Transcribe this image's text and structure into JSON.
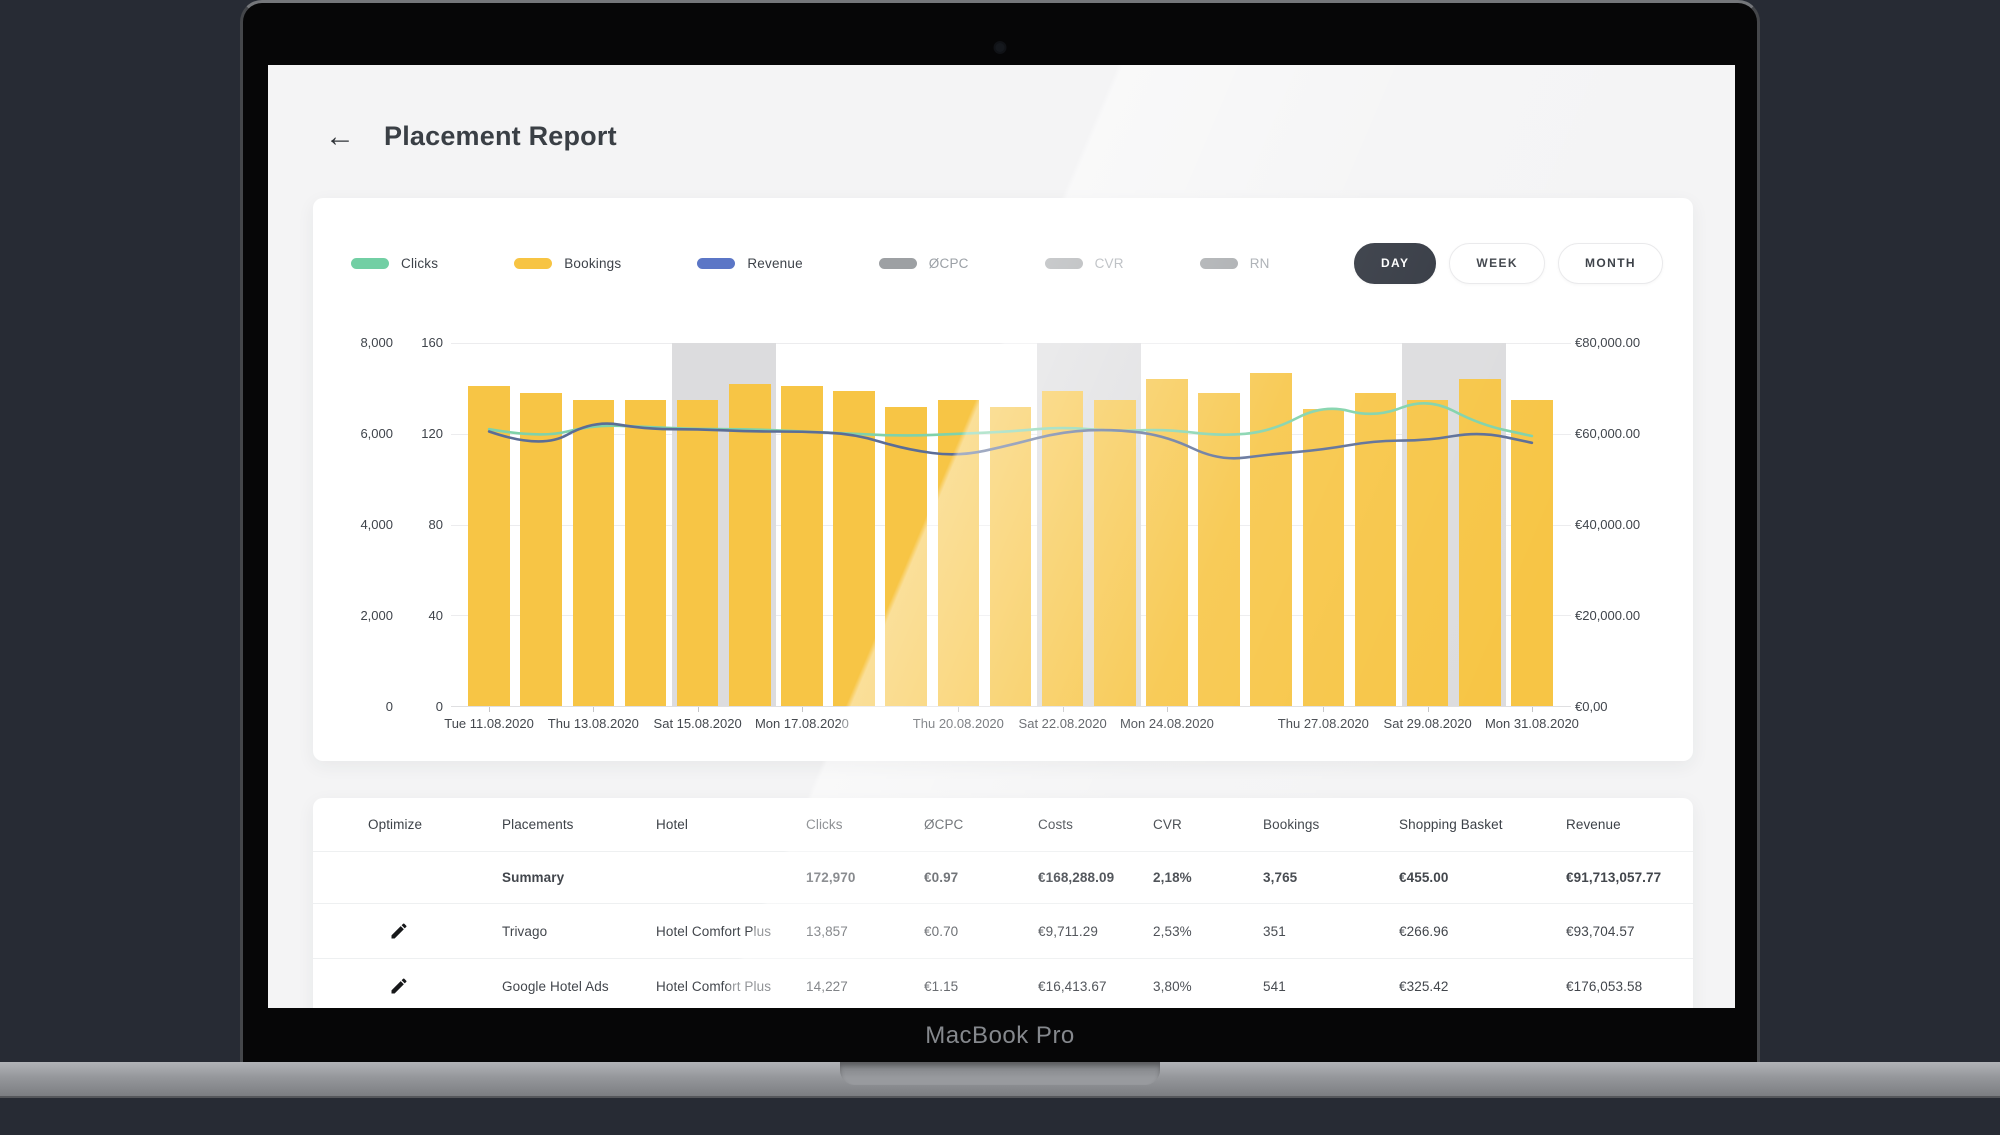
{
  "device": {
    "label": "MacBook Pro"
  },
  "header": {
    "title": "Placement Report",
    "back_icon": "arrow-left"
  },
  "chart": {
    "legend": [
      {
        "label": "Clicks",
        "color": "#72cfa4",
        "active": true
      },
      {
        "label": "Bookings",
        "color": "#f7c443",
        "active": true
      },
      {
        "label": "Revenue",
        "color": "#5b76c6",
        "active": true
      },
      {
        "label": "ØCPC",
        "color": "#9da0a3",
        "active": false
      },
      {
        "label": "CVR",
        "color": "#9da0a3",
        "active": false
      },
      {
        "label": "RN",
        "color": "#9da0a3",
        "active": false
      }
    ],
    "range_buttons": [
      {
        "label": "DAY",
        "selected": true
      },
      {
        "label": "WEEK",
        "selected": false
      },
      {
        "label": "MONTH",
        "selected": false
      }
    ],
    "axes": {
      "clicks_ticks": [
        "8,000",
        "6,000",
        "4,000",
        "2,000",
        "0"
      ],
      "bookings_ticks": [
        "160",
        "120",
        "80",
        "40",
        "0"
      ],
      "revenue_ticks": [
        "€80,000.00",
        "€60,000.00",
        "€40,000.00",
        "€20,000.00",
        "€0,00"
      ]
    }
  },
  "chart_data": {
    "type": "bar+line",
    "date_range": "11.08.2020 – 31.08.2020",
    "num_days": 21,
    "x_tick_labels": [
      {
        "slot": 0,
        "label": "Tue 11.08.2020"
      },
      {
        "slot": 2,
        "label": "Thu 13.08.2020"
      },
      {
        "slot": 4,
        "label": "Sat 15.08.2020"
      },
      {
        "slot": 6,
        "label": "Mon 17.08.2020"
      },
      {
        "slot": 9,
        "label": "Thu 20.08.2020"
      },
      {
        "slot": 11,
        "label": "Sat 22.08.2020"
      },
      {
        "slot": 13,
        "label": "Mon 24.08.2020"
      },
      {
        "slot": 16,
        "label": "Thu 27.08.2020"
      },
      {
        "slot": 18,
        "label": "Sat 29.08.2020"
      },
      {
        "slot": 20,
        "label": "Mon 31.08.2020"
      }
    ],
    "axis_ranges": {
      "clicks": [
        0,
        8000
      ],
      "bookings": [
        0,
        160
      ],
      "revenue_eur": [
        0,
        80000
      ]
    },
    "series": [
      {
        "name": "Bookings",
        "type": "bar",
        "color": "#f7c545",
        "axis": "bookings",
        "max": 160,
        "values": [
          141,
          138,
          135,
          135,
          135,
          142,
          141,
          139,
          132,
          135,
          132,
          139,
          135,
          144,
          138,
          147,
          131,
          138,
          135,
          144,
          135
        ]
      },
      {
        "name": "Clicks",
        "type": "line",
        "color": "#7fd2aa",
        "axis": "clicks",
        "max": 8000,
        "values": [
          6100,
          5900,
          6200,
          6150,
          6100,
          6100,
          6050,
          6000,
          5950,
          6000,
          6050,
          6150,
          6050,
          6100,
          5950,
          6050,
          6650,
          6350,
          6800,
          6200,
          5950
        ]
      },
      {
        "name": "Revenue",
        "type": "line",
        "color": "#5b6d96",
        "axis": "revenue_eur",
        "max": 80000,
        "values": [
          60500,
          56500,
          63000,
          61000,
          61000,
          60500,
          60500,
          60000,
          56500,
          55000,
          57500,
          60500,
          61000,
          59500,
          54000,
          55500,
          56500,
          58500,
          58500,
          60500,
          58000
        ]
      }
    ],
    "weekend_band_slots": [
      4,
      11,
      18
    ],
    "weekend_band_span": 2,
    "weekend_band_color": "#dcdcde",
    "grid": true,
    "legend_position": "top"
  },
  "table": {
    "columns": [
      "Optimize",
      "Placements",
      "Hotel",
      "Clicks",
      "ØCPC",
      "Costs",
      "CVR",
      "Bookings",
      "Shopping Basket",
      "Revenue"
    ],
    "summary_row": {
      "label": "Summary",
      "clicks": "172,970",
      "cpc": "€0.97",
      "costs": "€168,288.09",
      "cvr": "2,18%",
      "bookings": "3,765",
      "basket": "€455.00",
      "revenue": "€91,713,057.77"
    },
    "rows": [
      {
        "placement": "Trivago",
        "hotel": "Hotel Comfort Plus",
        "clicks": "13,857",
        "cpc": "€0.70",
        "costs": "€9,711.29",
        "cvr": "2,53%",
        "bookings": "351",
        "basket": "€266.96",
        "revenue": "€93,704.57"
      },
      {
        "placement": "Google Hotel Ads",
        "hotel": "Hotel Comfort Plus",
        "clicks": "14,227",
        "cpc": "€1.15",
        "costs": "€16,413.67",
        "cvr": "3,80%",
        "bookings": "541",
        "basket": "€325.42",
        "revenue": "€176,053.58"
      }
    ]
  }
}
